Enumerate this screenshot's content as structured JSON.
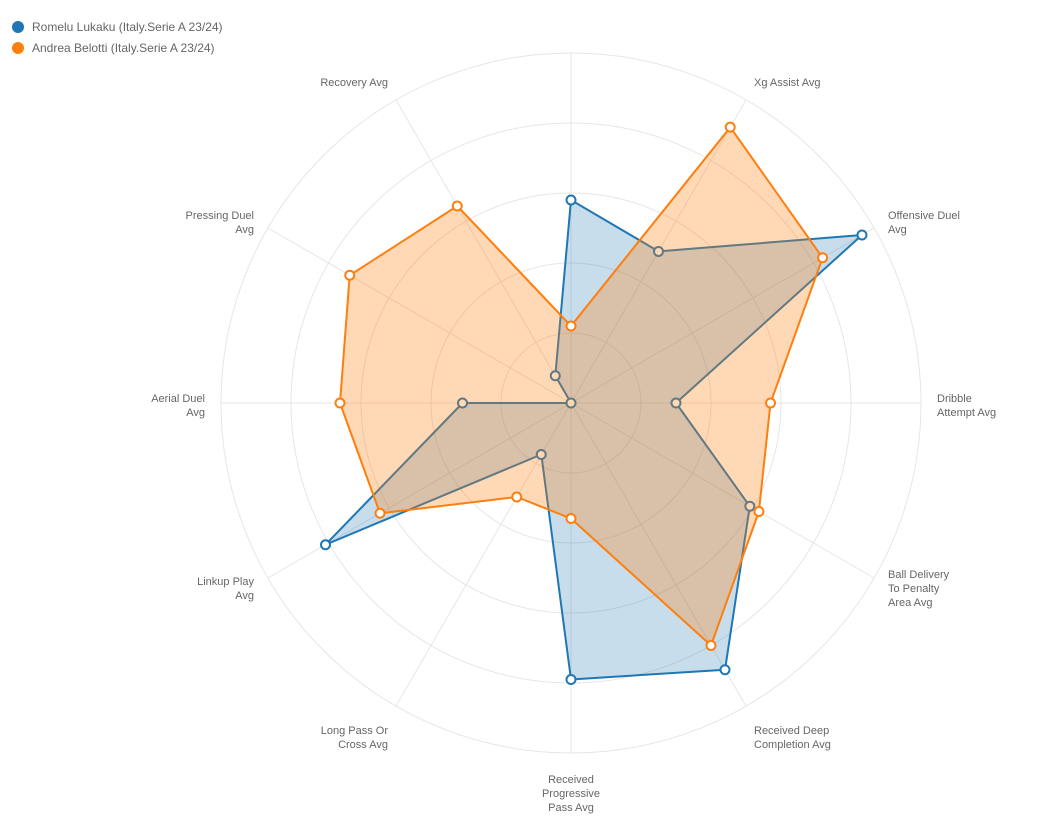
{
  "chart_data": {
    "type": "radar",
    "max": 5,
    "grid_levels": 5,
    "axes": [
      {
        "label": [
          "Dribble",
          "Attempt Avg"
        ]
      },
      {
        "label": [
          "Offensive Duel",
          "Avg"
        ]
      },
      {
        "label": [
          "Xg Assist Avg"
        ]
      },
      {
        "label": [
          ""
        ]
      },
      {
        "label": [
          "Recovery Avg"
        ]
      },
      {
        "label": [
          "Pressing Duel",
          "Avg"
        ]
      },
      {
        "label": [
          "Aerial Duel",
          "Avg"
        ]
      },
      {
        "label": [
          "Linkup Play",
          "Avg"
        ]
      },
      {
        "label": [
          "Long Pass Or",
          "Cross Avg"
        ]
      },
      {
        "label": [
          "Received",
          "Progressive",
          "Pass Avg"
        ]
      },
      {
        "label": [
          "Received Deep",
          "Completion Avg"
        ]
      },
      {
        "label": [
          "Ball Delivery",
          "To Penalty",
          "Area Avg"
        ]
      }
    ],
    "series": [
      {
        "name": "Romelu Lukaku (Italy.Serie A 23/24)",
        "color": "#1f77b4",
        "values": [
          1.5,
          4.8,
          2.5,
          2.9,
          0.45,
          0.0,
          1.55,
          4.05,
          0.85,
          3.95,
          4.4,
          2.95
        ]
      },
      {
        "name": "Andrea Belotti (Italy.Serie A 23/24)",
        "color": "#ff7f0e",
        "values": [
          2.85,
          4.15,
          4.55,
          1.1,
          3.25,
          3.65,
          3.3,
          3.15,
          1.55,
          1.65,
          4.0,
          3.1
        ]
      }
    ]
  }
}
